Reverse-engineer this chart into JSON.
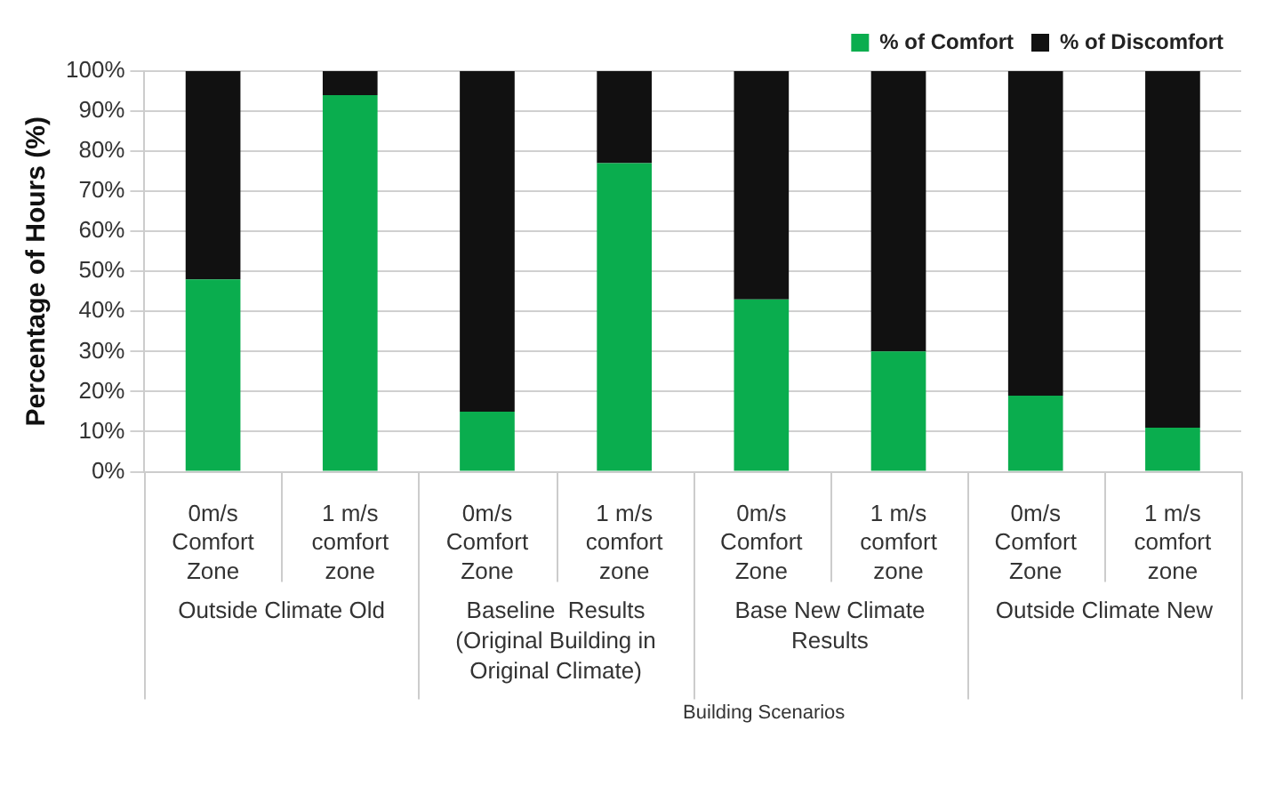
{
  "chart_data": {
    "type": "bar",
    "stacked": true,
    "ylabel": "Percentage of Hours (%)",
    "categories": [
      "0m/s Comfort Zone",
      "1 m/s comfort zone",
      "0m/s Comfort Zone",
      "1 m/s comfort zone",
      "0m/s Comfort Zone",
      "1 m/s comfort zone",
      "0m/s Comfort Zone",
      "1 m/s comfort zone"
    ],
    "annotations": [
      "Outside Climate Old",
      "Baseline  Results (Original Building in Original Climate)",
      "Base New Climate Results",
      "Outside Climate New",
      "Building Scenarios"
    ],
    "series": [
      {
        "name": "% of Comfort",
        "color": "#0aad4e",
        "values": [
          48,
          94,
          15,
          77,
          43,
          30,
          19,
          11
        ]
      },
      {
        "name": "% of Discomfort",
        "color": "#111111",
        "values": [
          52,
          6,
          85,
          23,
          57,
          70,
          81,
          89
        ]
      }
    ],
    "ylim": [
      0,
      100
    ],
    "yticks": [
      {
        "value": 0,
        "label": "0%"
      },
      {
        "value": 10,
        "label": "10%"
      },
      {
        "value": 20,
        "label": "20%"
      },
      {
        "value": 30,
        "label": "30%"
      },
      {
        "value": 40,
        "label": "40%"
      },
      {
        "value": 50,
        "label": "50%"
      },
      {
        "value": 60,
        "label": "60%"
      },
      {
        "value": 70,
        "label": "70%"
      },
      {
        "value": 80,
        "label": "80%"
      },
      {
        "value": 90,
        "label": "90%"
      },
      {
        "value": 100,
        "label": "100%"
      }
    ],
    "grid": "y",
    "legend": "top right"
  }
}
